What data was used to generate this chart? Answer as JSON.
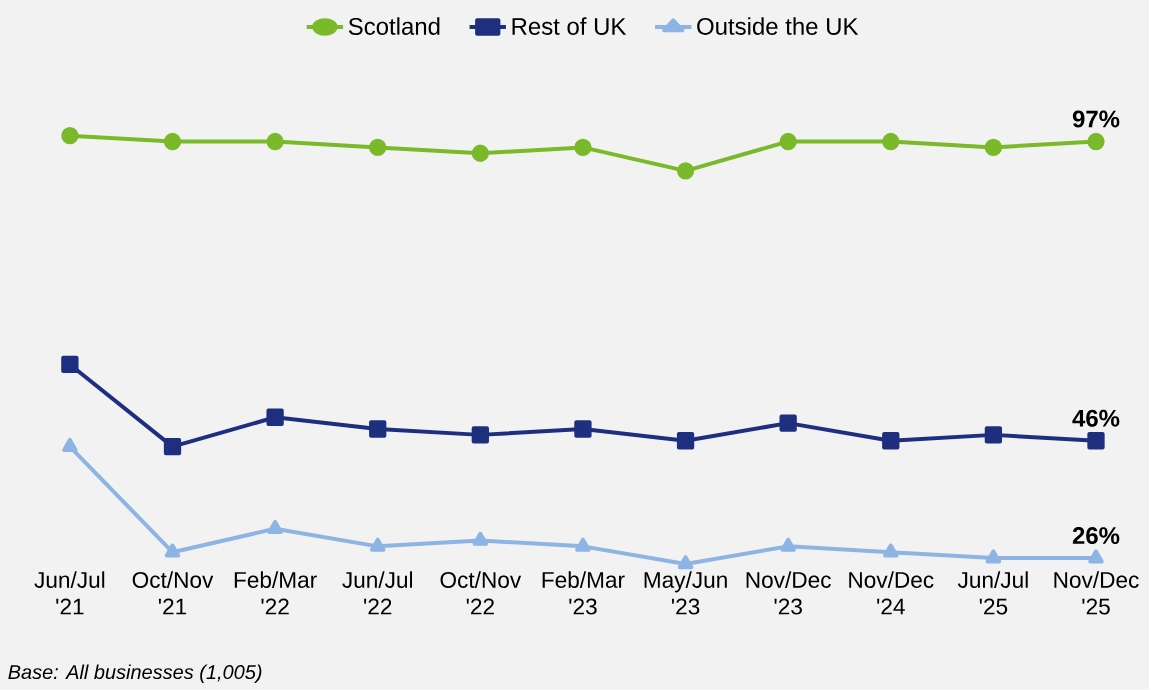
{
  "chart_data": {
    "type": "line",
    "categories": [
      "Jun/Jul '21",
      "Oct/Nov '21",
      "Feb/Mar '22",
      "Jun/Jul '22",
      "Oct/Nov '22",
      "Feb/Mar '23",
      "May/Jun '23",
      "Nov/Dec '23",
      "Nov/Dec '24",
      "Jun/Jul '25",
      "Nov/Dec '25"
    ],
    "series": [
      {
        "name": "Scotland",
        "color": "#7ab929",
        "marker": "circle",
        "values": [
          98,
          97,
          97,
          96,
          95,
          96,
          92,
          97,
          97,
          96,
          97
        ],
        "value_labels": [
          null,
          null,
          null,
          null,
          null,
          null,
          null,
          null,
          null,
          null,
          "97%"
        ]
      },
      {
        "name": "Rest of UK",
        "color": "#1f2f7f",
        "marker": "square",
        "values": [
          59,
          45,
          50,
          48,
          47,
          48,
          46,
          49,
          46,
          47,
          46
        ],
        "value_labels": [
          null,
          null,
          null,
          null,
          null,
          null,
          null,
          null,
          null,
          null,
          "46%"
        ]
      },
      {
        "name": "Outside the UK",
        "color": "#8db4e2",
        "marker": "triangle",
        "values": [
          45,
          27,
          31,
          28,
          29,
          28,
          25,
          28,
          27,
          26,
          26
        ],
        "value_labels": [
          null,
          null,
          null,
          null,
          null,
          null,
          null,
          null,
          null,
          null,
          "26%"
        ]
      }
    ],
    "legend": "top",
    "annotations": [
      "Base: All businesses (1,005)"
    ]
  }
}
